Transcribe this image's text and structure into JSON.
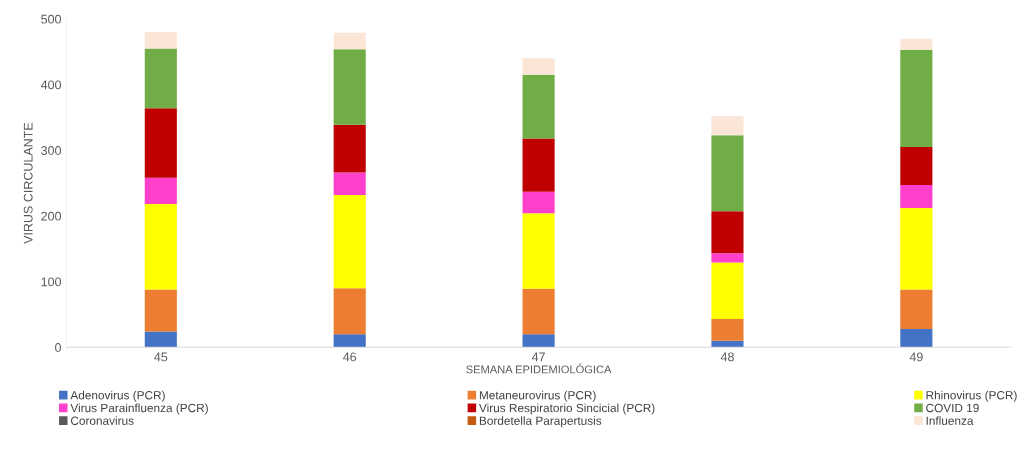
{
  "chart_data": {
    "type": "bar",
    "stacked": true,
    "xlabel": "SEMANA EPIDEMIOLÓGICA",
    "ylabel": "VIRUS CIRCULANTE",
    "categories": [
      "45",
      "46",
      "47",
      "48",
      "49"
    ],
    "ylim": [
      0,
      500
    ],
    "yticks": [
      0,
      100,
      200,
      300,
      400,
      500
    ],
    "grid": false,
    "legend": "bottom",
    "series": [
      {
        "name": "Adenovirus (PCR)",
        "color": "#4472c4",
        "values": [
          24,
          20,
          20,
          10,
          28
        ]
      },
      {
        "name": "Metaneurovirus (PCR)",
        "color": "#ed7d31",
        "values": [
          64,
          70,
          69,
          33,
          60
        ]
      },
      {
        "name": "Rhinovirus (PCR)",
        "color": "#ffff00",
        "values": [
          130,
          142,
          115,
          86,
          124
        ]
      },
      {
        "name": "Virus Parainfluenza (PCR)",
        "color": "#ff40cc",
        "values": [
          40,
          34,
          33,
          14,
          35
        ]
      },
      {
        "name": "Virus Respiratorio Sincicial (PCR)",
        "color": "#c00000",
        "values": [
          106,
          73,
          81,
          64,
          58
        ]
      },
      {
        "name": "COVID 19",
        "color": "#70ad47",
        "values": [
          91,
          115,
          97,
          116,
          148
        ]
      },
      {
        "name": "Coronavirus",
        "color": "#595959",
        "values": [
          0,
          0,
          0,
          0,
          0
        ]
      },
      {
        "name": "Bordetella Parapertusis",
        "color": "#c55a11",
        "values": [
          0,
          0,
          0,
          0,
          0
        ]
      },
      {
        "name": "Influenza",
        "color": "#fbe5d6",
        "values": [
          25,
          25,
          25,
          29,
          17
        ]
      }
    ]
  }
}
